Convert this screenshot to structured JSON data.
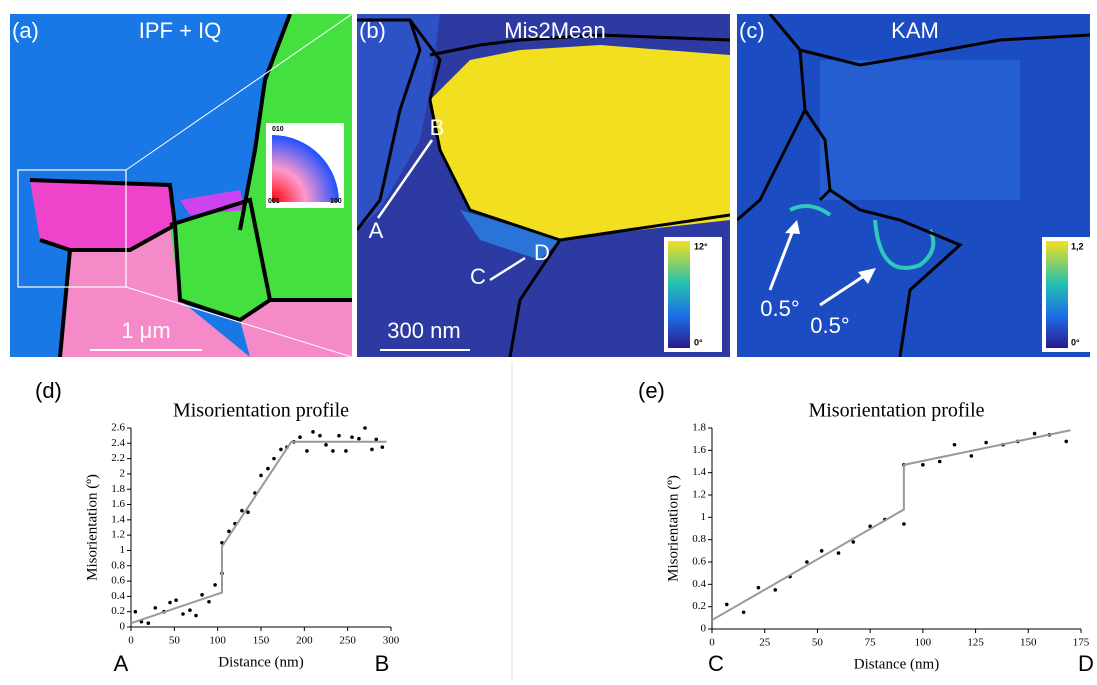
{
  "panels": {
    "a": {
      "label": "(a)",
      "title": "IPF + IQ",
      "scale": "1 μm",
      "legend": [
        "010",
        "001",
        "100"
      ]
    },
    "b": {
      "label": "(b)",
      "title": "Mis2Mean",
      "scale": "300 nm",
      "points": [
        "A",
        "B",
        "C",
        "D"
      ],
      "colorbar": [
        "12°",
        "0°"
      ]
    },
    "c": {
      "label": "(c)",
      "title": "KAM",
      "annotations": [
        "0.5°",
        "0.5°"
      ],
      "colorbar": [
        "1,2",
        "0°"
      ]
    }
  },
  "chart_data": [
    {
      "type": "scatter",
      "panel": "(d)",
      "title": "Misorientation profile",
      "xlabel": "Distance (nm)",
      "ylabel": "Misorientation (º)",
      "start": "A",
      "end": "B",
      "xlim": [
        0,
        300
      ],
      "xticks": [
        0,
        50,
        100,
        150,
        200,
        250,
        300
      ],
      "ylim": [
        0,
        2.6
      ],
      "yticks": [
        0,
        0.2,
        0.4,
        0.6,
        0.8,
        1,
        1.2,
        1.4,
        1.6,
        1.8,
        2,
        2.2,
        2.4,
        2.6
      ],
      "series": [
        {
          "style": "markers",
          "color": "#000000",
          "x": [
            5,
            12,
            20,
            28,
            38,
            45,
            52,
            60,
            68,
            75,
            82,
            90,
            97,
            105,
            105,
            113,
            120,
            128,
            135,
            143,
            150,
            158,
            165,
            173,
            180,
            188,
            195,
            203,
            210,
            218,
            225,
            233,
            240,
            248,
            255,
            263,
            270,
            278,
            283,
            290
          ],
          "values": [
            0.2,
            0.07,
            0.05,
            0.25,
            0.2,
            0.32,
            0.35,
            0.17,
            0.22,
            0.15,
            0.42,
            0.33,
            0.55,
            0.7,
            1.1,
            1.25,
            1.35,
            1.52,
            1.5,
            1.75,
            1.98,
            2.07,
            2.2,
            2.32,
            2.35,
            2.42,
            2.48,
            2.3,
            2.55,
            2.5,
            2.38,
            2.3,
            2.5,
            2.3,
            2.48,
            2.46,
            2.6,
            2.32,
            2.45,
            2.35
          ]
        },
        {
          "style": "line",
          "color": "#999999",
          "x": [
            0,
            105,
            105,
            185,
            295
          ],
          "values": [
            0.05,
            0.45,
            1.05,
            2.42,
            2.42
          ]
        }
      ]
    },
    {
      "type": "scatter",
      "panel": "(e)",
      "title": "Misorientation profile",
      "xlabel": "Distance (nm)",
      "ylabel": "Misorientation (º)",
      "start": "C",
      "end": "D",
      "xlim": [
        0,
        175
      ],
      "xticks": [
        0,
        25,
        50,
        75,
        100,
        125,
        150,
        175
      ],
      "ylim": [
        0,
        1.8
      ],
      "yticks": [
        0,
        0.2,
        0.4,
        0.6,
        0.8,
        1,
        1.2,
        1.4,
        1.6,
        1.8
      ],
      "series": [
        {
          "style": "markers",
          "color": "#000000",
          "x": [
            7,
            15,
            22,
            30,
            37,
            45,
            52,
            60,
            67,
            75,
            82,
            91,
            91,
            100,
            108,
            115,
            123,
            130,
            138,
            145,
            153,
            160,
            168
          ],
          "values": [
            0.22,
            0.15,
            0.37,
            0.35,
            0.47,
            0.6,
            0.7,
            0.68,
            0.78,
            0.92,
            0.98,
            0.94,
            1.47,
            1.47,
            1.5,
            1.65,
            1.55,
            1.67,
            1.65,
            1.68,
            1.75,
            1.74,
            1.68
          ]
        },
        {
          "style": "line",
          "color": "#999999",
          "x": [
            0,
            91,
            91,
            170
          ],
          "values": [
            0.08,
            1.07,
            1.47,
            1.78
          ]
        }
      ]
    }
  ]
}
